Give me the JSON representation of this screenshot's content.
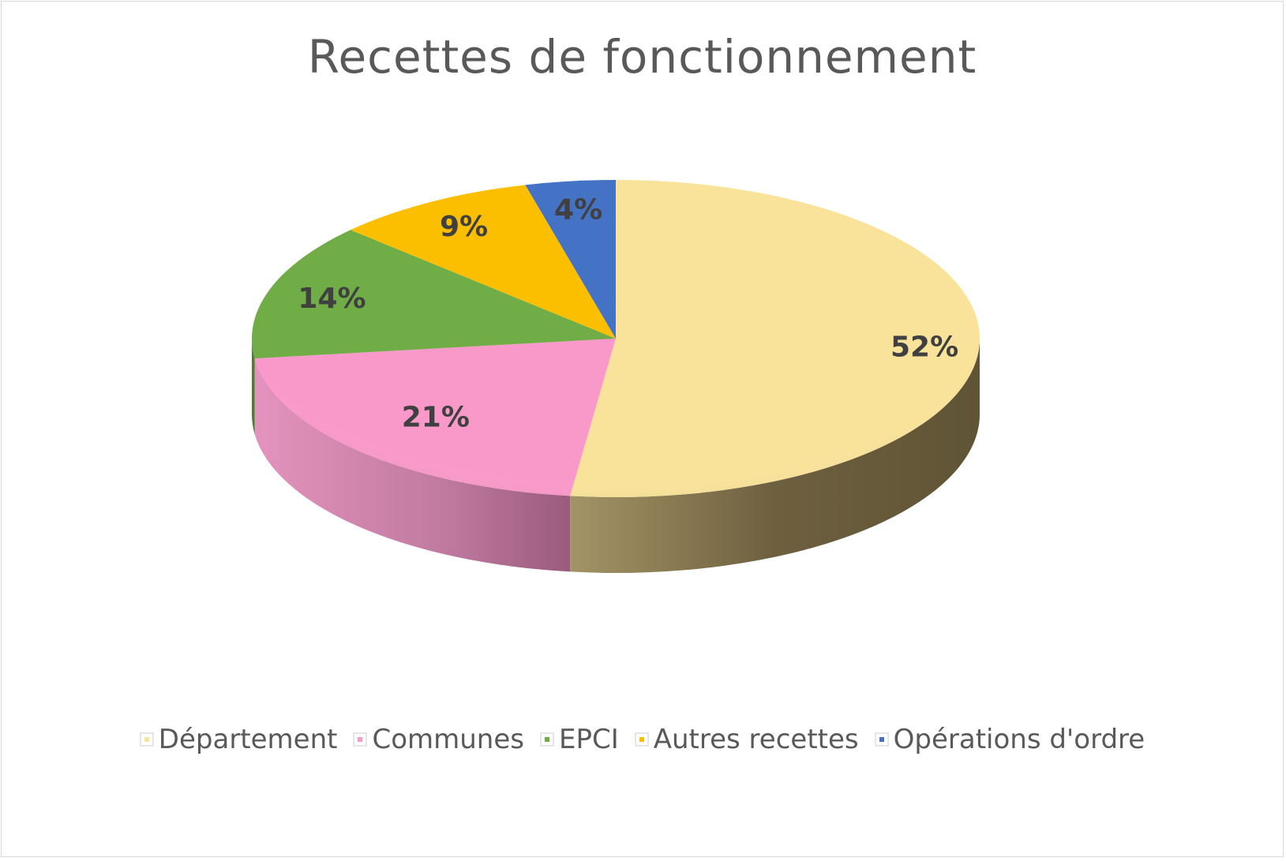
{
  "chart_data": {
    "type": "pie",
    "title": "Recettes de fonctionnement",
    "categories": [
      "Département",
      "Communes",
      "EPCI",
      "Autres recettes",
      "Opérations d'ordre"
    ],
    "values": [
      52,
      21,
      14,
      9,
      4
    ],
    "labels": [
      "52%",
      "21%",
      "14%",
      "9%",
      "4%"
    ],
    "colors": [
      "#f9e39a",
      "#f999c9",
      "#70ad47",
      "#fbbf00",
      "#4472c4"
    ],
    "side_colors": [
      "#8a7a47",
      "#c97aa6",
      "#4f7d31",
      "#b58a00",
      "#2f5597"
    ],
    "legend_position": "bottom",
    "style": "3d-pie"
  }
}
